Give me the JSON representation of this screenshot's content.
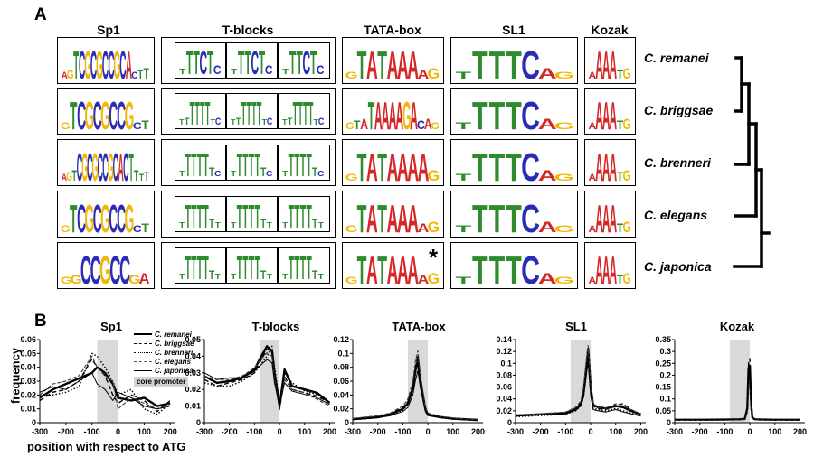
{
  "panel_a": {
    "letter": "A",
    "columns": [
      {
        "key": "sp1",
        "title": "Sp1"
      },
      {
        "key": "tblocks",
        "title": "T-blocks"
      },
      {
        "key": "tata",
        "title": "TATA-box"
      },
      {
        "key": "sl1",
        "title": "SL1"
      },
      {
        "key": "kozak",
        "title": "Kozak"
      }
    ],
    "species": [
      "C. remanei",
      "C. briggsae",
      "C. brenneri",
      "C. elegans",
      "C. japonica"
    ],
    "asterisk": "*",
    "logo_letter_colors": {
      "A": "#d62728",
      "C": "#2b2bb5",
      "G": "#f2b705",
      "T": "#2e8b2e"
    },
    "logos": {
      "sp1": [
        [
          "AGTCGCGCCGCACTT",
          "GTCGCGCCGC"
        ],
        [
          "GTCGCGCCGCT",
          "TCGCGCCG"
        ],
        [
          "AGTCGCGCCGCACTTTT",
          "GTCGCGCCGCT"
        ],
        [
          "GTCGCGCCGCT",
          "GTCGCGCC"
        ],
        [
          "GGCCGCCGA",
          "GCGCC"
        ]
      ],
      "tata": [
        [
          "GTATAAAAG",
          "TATAAA"
        ],
        [
          "GTATAAAAGACAG",
          "TATAAAA"
        ],
        [
          "GTATAAAAG",
          "TATAAAA"
        ],
        [
          "GTATAAAAG",
          "TATAAA"
        ],
        [
          "GTATAAAAG",
          "TATAAA"
        ]
      ],
      "sl1": [
        [
          "TTTTCAG",
          "TCAG"
        ],
        [
          "TTTTCAG",
          "TCAG"
        ],
        [
          "TTTTCAG",
          "TCAG"
        ],
        [
          "TTTTCAG",
          "TCAG"
        ],
        [
          "TTTTCAG",
          "TCAG"
        ]
      ],
      "kozak": [
        [
          "AAAATG",
          "AAA"
        ],
        [
          "AAAATG",
          "AAA"
        ],
        [
          "AAAATG",
          "AAA"
        ],
        [
          "AAAATG",
          "AAA"
        ],
        [
          "AAAATG",
          "AAA"
        ]
      ],
      "tblocks": [
        [
          "TTTCTC",
          "TTTT"
        ],
        [
          "TTTTTTTC",
          "TTTT"
        ],
        [
          "TTTTTTC",
          "TTTT"
        ],
        [
          "TTTTTTT",
          "TTTT"
        ],
        [
          "TTTTTTT",
          "TTTT"
        ]
      ]
    }
  },
  "panel_b": {
    "letter": "B",
    "ylabel": "frequency",
    "xlabel": "position with respect to ATG",
    "legend": {
      "entries": [
        "C. remanei",
        "C. briggsae",
        "C. brenneri",
        "C. elegans",
        "C. japonica"
      ],
      "core_label": "core promoter"
    }
  },
  "chart_data": [
    {
      "type": "line",
      "title": "Sp1",
      "x_ticks": [
        -300,
        -200,
        -100,
        0,
        100,
        200
      ],
      "y_ticks": [
        "0",
        "0.01",
        "0.02",
        "0.03",
        "0.04",
        "0.05",
        "0.06"
      ],
      "ylim": [
        0,
        0.06
      ],
      "xlim": [
        -300,
        220
      ],
      "shaded_region": [
        -80,
        0
      ],
      "x": [
        -300,
        -250,
        -200,
        -150,
        -100,
        -80,
        -50,
        -20,
        0,
        50,
        100,
        150,
        200
      ],
      "series": [
        {
          "name": "C. remanei",
          "values": [
            0.018,
            0.024,
            0.028,
            0.032,
            0.036,
            0.04,
            0.036,
            0.028,
            0.018,
            0.016,
            0.018,
            0.012,
            0.014
          ]
        },
        {
          "name": "C. briggsae",
          "values": [
            0.016,
            0.022,
            0.024,
            0.03,
            0.046,
            0.04,
            0.034,
            0.02,
            0.014,
            0.02,
            0.016,
            0.008,
            0.016
          ]
        },
        {
          "name": "C. brenneri",
          "values": [
            0.02,
            0.02,
            0.022,
            0.026,
            0.05,
            0.048,
            0.04,
            0.03,
            0.02,
            0.024,
            0.01,
            0.006,
            0.014
          ]
        },
        {
          "name": "C. elegans",
          "values": [
            0.02,
            0.028,
            0.03,
            0.034,
            0.048,
            0.04,
            0.034,
            0.03,
            0.01,
            0.018,
            0.014,
            0.01,
            0.014
          ]
        },
        {
          "name": "C. japonica",
          "values": [
            0.022,
            0.026,
            0.024,
            0.03,
            0.036,
            0.028,
            0.024,
            0.016,
            0.022,
            0.018,
            0.012,
            0.01,
            0.012
          ]
        }
      ]
    },
    {
      "type": "line",
      "title": "T-blocks",
      "x_ticks": [
        -300,
        -200,
        -100,
        0,
        100,
        200
      ],
      "y_ticks": [
        "0",
        "0.01",
        "0.02",
        "0.03",
        "0.04",
        "0.05"
      ],
      "ylim": [
        0,
        0.05
      ],
      "xlim": [
        -300,
        220
      ],
      "shaded_region": [
        -80,
        0
      ],
      "x": [
        -300,
        -250,
        -200,
        -150,
        -100,
        -80,
        -50,
        -30,
        -20,
        0,
        20,
        50,
        100,
        150,
        200
      ],
      "series": [
        {
          "name": "C. remanei",
          "values": [
            0.028,
            0.024,
            0.025,
            0.027,
            0.032,
            0.038,
            0.046,
            0.043,
            0.03,
            0.01,
            0.032,
            0.022,
            0.02,
            0.018,
            0.012
          ]
        },
        {
          "name": "C. briggsae",
          "values": [
            0.026,
            0.022,
            0.024,
            0.026,
            0.03,
            0.036,
            0.044,
            0.044,
            0.028,
            0.008,
            0.028,
            0.02,
            0.018,
            0.016,
            0.012
          ]
        },
        {
          "name": "C. brenneri",
          "values": [
            0.024,
            0.022,
            0.022,
            0.025,
            0.03,
            0.034,
            0.04,
            0.046,
            0.034,
            0.012,
            0.03,
            0.024,
            0.019,
            0.017,
            0.012
          ]
        },
        {
          "name": "C. elegans",
          "values": [
            0.028,
            0.026,
            0.026,
            0.028,
            0.033,
            0.037,
            0.042,
            0.04,
            0.026,
            0.008,
            0.026,
            0.02,
            0.018,
            0.014,
            0.01
          ]
        },
        {
          "name": "C. japonica",
          "values": [
            0.03,
            0.026,
            0.027,
            0.027,
            0.031,
            0.034,
            0.038,
            0.036,
            0.024,
            0.01,
            0.024,
            0.019,
            0.017,
            0.015,
            0.011
          ]
        }
      ]
    },
    {
      "type": "line",
      "title": "TATA-box",
      "x_ticks": [
        -300,
        -200,
        -100,
        0,
        100,
        200
      ],
      "y_ticks": [
        "0",
        "0.02",
        "0.04",
        "0.06",
        "0.08",
        "0.1",
        "0.12"
      ],
      "ylim": [
        0,
        0.12
      ],
      "xlim": [
        -300,
        220
      ],
      "shaded_region": [
        -80,
        0
      ],
      "x": [
        -300,
        -200,
        -150,
        -100,
        -80,
        -60,
        -50,
        -40,
        -30,
        -10,
        0,
        50,
        100,
        150,
        200
      ],
      "series": [
        {
          "name": "C. remanei",
          "values": [
            0.005,
            0.008,
            0.012,
            0.02,
            0.028,
            0.05,
            0.075,
            0.09,
            0.06,
            0.02,
            0.012,
            0.008,
            0.006,
            0.005,
            0.004
          ]
        },
        {
          "name": "C. briggsae",
          "values": [
            0.006,
            0.009,
            0.013,
            0.022,
            0.03,
            0.055,
            0.08,
            0.098,
            0.065,
            0.022,
            0.013,
            0.009,
            0.006,
            0.005,
            0.004
          ]
        },
        {
          "name": "C. brenneri",
          "values": [
            0.005,
            0.008,
            0.011,
            0.018,
            0.026,
            0.048,
            0.07,
            0.085,
            0.055,
            0.018,
            0.011,
            0.008,
            0.005,
            0.004,
            0.003
          ]
        },
        {
          "name": "C. elegans",
          "values": [
            0.006,
            0.01,
            0.014,
            0.024,
            0.034,
            0.06,
            0.088,
            0.104,
            0.07,
            0.024,
            0.014,
            0.009,
            0.007,
            0.005,
            0.004
          ]
        },
        {
          "name": "C. japonica",
          "values": [
            0.004,
            0.007,
            0.01,
            0.016,
            0.022,
            0.04,
            0.06,
            0.075,
            0.05,
            0.016,
            0.01,
            0.007,
            0.005,
            0.004,
            0.003
          ]
        }
      ]
    },
    {
      "type": "line",
      "title": "SL1",
      "x_ticks": [
        -300,
        -200,
        -100,
        0,
        100,
        200
      ],
      "y_ticks": [
        "0",
        "0.02",
        "0.04",
        "0.06",
        "0.08",
        "0.1",
        "0.12",
        "0.14"
      ],
      "ylim": [
        0,
        0.14
      ],
      "xlim": [
        -300,
        220
      ],
      "shaded_region": [
        -80,
        0
      ],
      "x": [
        -300,
        -200,
        -100,
        -60,
        -40,
        -30,
        -20,
        -10,
        0,
        10,
        30,
        60,
        100,
        130,
        160,
        200
      ],
      "series": [
        {
          "name": "C. remanei",
          "values": [
            0.012,
            0.014,
            0.016,
            0.022,
            0.03,
            0.045,
            0.08,
            0.125,
            0.06,
            0.03,
            0.026,
            0.024,
            0.028,
            0.026,
            0.02,
            0.014
          ]
        },
        {
          "name": "C. briggsae",
          "values": [
            0.012,
            0.014,
            0.017,
            0.024,
            0.034,
            0.05,
            0.09,
            0.12,
            0.055,
            0.028,
            0.024,
            0.022,
            0.03,
            0.032,
            0.022,
            0.014
          ]
        },
        {
          "name": "C. brenneri",
          "values": [
            0.01,
            0.012,
            0.014,
            0.02,
            0.028,
            0.04,
            0.07,
            0.11,
            0.05,
            0.024,
            0.022,
            0.02,
            0.024,
            0.02,
            0.016,
            0.012
          ]
        },
        {
          "name": "C. elegans",
          "values": [
            0.013,
            0.015,
            0.018,
            0.026,
            0.036,
            0.055,
            0.095,
            0.13,
            0.065,
            0.032,
            0.026,
            0.024,
            0.032,
            0.03,
            0.022,
            0.015
          ]
        },
        {
          "name": "C. japonica",
          "values": [
            0.011,
            0.013,
            0.015,
            0.021,
            0.03,
            0.042,
            0.075,
            0.1,
            0.045,
            0.022,
            0.02,
            0.018,
            0.022,
            0.018,
            0.015,
            0.011
          ]
        }
      ]
    },
    {
      "type": "line",
      "title": "Kozak",
      "x_ticks": [
        -300,
        -200,
        -100,
        0,
        100,
        200
      ],
      "y_ticks": [
        "0",
        "0.05",
        "0.1",
        "0.15",
        "0.2",
        "0.25",
        "0.3",
        "0.35"
      ],
      "ylim": [
        0,
        0.35
      ],
      "xlim": [
        -300,
        220
      ],
      "shaded_region": [
        -80,
        0
      ],
      "x": [
        -300,
        -200,
        -100,
        -40,
        -20,
        -10,
        -5,
        0,
        5,
        10,
        20,
        50,
        100,
        200
      ],
      "series": [
        {
          "name": "C. remanei",
          "values": [
            0.012,
            0.012,
            0.013,
            0.014,
            0.016,
            0.06,
            0.23,
            0.24,
            0.08,
            0.022,
            0.014,
            0.013,
            0.012,
            0.012
          ]
        },
        {
          "name": "C. briggsae",
          "values": [
            0.011,
            0.011,
            0.012,
            0.013,
            0.015,
            0.055,
            0.25,
            0.27,
            0.07,
            0.02,
            0.013,
            0.012,
            0.011,
            0.011
          ]
        },
        {
          "name": "C. brenneri",
          "values": [
            0.012,
            0.012,
            0.012,
            0.014,
            0.016,
            0.05,
            0.2,
            0.21,
            0.06,
            0.02,
            0.014,
            0.013,
            0.012,
            0.012
          ]
        },
        {
          "name": "C. elegans",
          "values": [
            0.01,
            0.01,
            0.011,
            0.012,
            0.014,
            0.04,
            0.16,
            0.18,
            0.05,
            0.018,
            0.012,
            0.011,
            0.01,
            0.01
          ]
        },
        {
          "name": "C. japonica",
          "values": [
            0.013,
            0.013,
            0.013,
            0.015,
            0.017,
            0.06,
            0.22,
            0.23,
            0.07,
            0.022,
            0.015,
            0.014,
            0.013,
            0.013
          ]
        }
      ]
    }
  ]
}
